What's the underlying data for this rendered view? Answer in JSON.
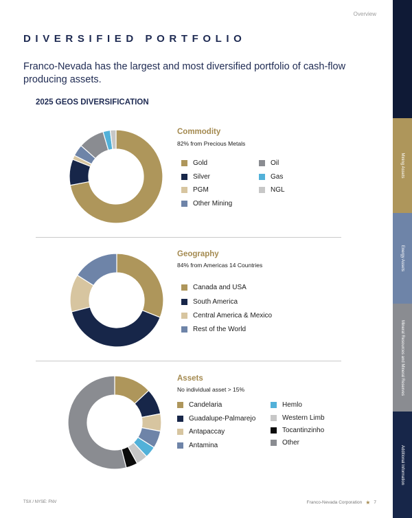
{
  "header": {
    "section_label": "Overview",
    "title": "DIVERSIFIED PORTFOLIO",
    "lead": "Franco-Nevada has the largest and most diversified portfolio of cash-flow producing assets."
  },
  "section_heading": "2025 GEOS DIVERSIFICATION",
  "colors": {
    "gold": "#ae965b",
    "navy": "#172649",
    "tan": "#d7c5a0",
    "slate": "#6e84a8",
    "gray": "#8a8c91",
    "sky": "#52b1d9",
    "light_gray": "#c7c7c7",
    "black": "#0b0b0b"
  },
  "chart_data": [
    {
      "type": "pie",
      "title": "Commodity",
      "subtitle": "82% from Precious Metals",
      "legend": "right",
      "categories": [
        "Gold",
        "Silver",
        "PGM",
        "Other Mining",
        "Oil",
        "Gas",
        "NGL"
      ],
      "values": [
        72,
        9,
        1.5,
        4,
        9,
        2.5,
        2
      ],
      "colors": [
        "#ae965b",
        "#172649",
        "#d7c5a0",
        "#6e84a8",
        "#8a8c91",
        "#52b1d9",
        "#c7c7c7"
      ]
    },
    {
      "type": "pie",
      "title": "Geography",
      "subtitle": "84% from Americas 14 Countries",
      "legend": "right",
      "categories": [
        "Canada and USA",
        "South America",
        "Central America & Mexico",
        "Rest of the World"
      ],
      "values": [
        31,
        40,
        13,
        16
      ],
      "colors": [
        "#ae965b",
        "#172649",
        "#d7c5a0",
        "#6e84a8"
      ]
    },
    {
      "type": "pie",
      "title": "Assets",
      "subtitle": "No individual asset > 15%",
      "legend": "right",
      "categories": [
        "Candelaria",
        "Guadalupe-Palmarejo",
        "Antapaccay",
        "Antamina",
        "Hemlo",
        "Western Limb",
        "Tocantinzinho",
        "Other"
      ],
      "values": [
        13,
        9,
        6,
        6,
        4,
        4,
        4,
        54
      ],
      "colors": [
        "#ae965b",
        "#172649",
        "#d7c5a0",
        "#6e84a8",
        "#52b1d9",
        "#c7c7c7",
        "#0b0b0b",
        "#8a8c91"
      ]
    }
  ],
  "sidebar": {
    "tabs": [
      {
        "label": "Mining Assets",
        "color": "#ae965b"
      },
      {
        "label": "Energy Assets",
        "color": "#6e84a8"
      },
      {
        "label": "Mineral Resources and Mineral Reserves",
        "color": "#8a8c91"
      },
      {
        "label": "Additional Information",
        "color": "#172649"
      }
    ]
  },
  "footer": {
    "ticker": "TSX / NYSE: FNV",
    "company": "Franco-Nevada Corporation",
    "page_number": "7"
  }
}
